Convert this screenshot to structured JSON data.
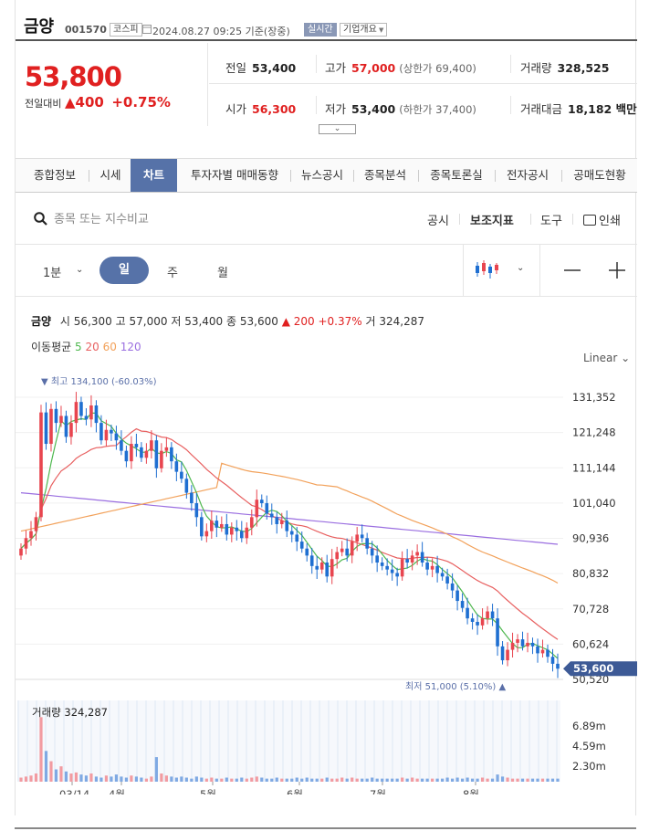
{
  "header": {
    "name": "금양",
    "code": "001570",
    "market": "코스피",
    "datetime": "2024.08.27 09:25 기준(장중)",
    "live": "실시간",
    "overview": "기업개요"
  },
  "price": {
    "current": "53,800",
    "change_label": "전일대비",
    "change_value": "▲400",
    "change_pct": "+0.75%"
  },
  "stats": {
    "prev_label": "전일",
    "prev": "53,400",
    "high_label": "고가",
    "high": "57,000",
    "upper_limit": "(상한가 69,400)",
    "volume_label": "거래량",
    "volume": "328,525",
    "open_label": "시가",
    "open": "56,300",
    "low_label": "저가",
    "low": "53,400",
    "lower_limit": "(하한가 37,400)",
    "amount_label": "거래대금",
    "amount": "18,182 백만"
  },
  "tabs": [
    "종합정보",
    "시세",
    "차트",
    "투자자별 매매동향",
    "뉴스공시",
    "종목분석",
    "종목토론실",
    "전자공시",
    "공매도현황"
  ],
  "search": {
    "placeholder": "종목 또는 지수비교"
  },
  "tools": {
    "disclosure": "공시",
    "indicator": "보조지표",
    "tool": "도구",
    "print": "인쇄"
  },
  "periods": {
    "minute": "1분",
    "day": "일",
    "week": "주",
    "month": "월"
  },
  "ohlc": {
    "name": "금양",
    "open_label": "시",
    "open": "56,300",
    "high_label": "고",
    "high": "57,000",
    "low_label": "저",
    "low": "53,400",
    "close_label": "종",
    "close": "53,600",
    "change": "▲ 200 +0.37%",
    "vol_label": "거",
    "vol": "324,287"
  },
  "ma_legend": {
    "label": "이동평균",
    "p5": "5",
    "p20": "20",
    "p60": "60",
    "p120": "120"
  },
  "scale_mode": "Linear",
  "colors": {
    "up": "#e8454f",
    "down": "#1f6fd1",
    "ma5": "#4fb84f",
    "ma20": "#e86060",
    "ma60": "#f2a15a",
    "ma120": "#9a6ee0",
    "accent": "#5672a8"
  },
  "chart_data": {
    "type": "candlestick",
    "y_ticks": [
      "131,352",
      "121,248",
      "111,144",
      "101,040",
      "90,936",
      "80,832",
      "70,728",
      "60,624",
      "50,520"
    ],
    "ylim": [
      50520,
      131352
    ],
    "x_ticks": [
      "03/14",
      "4월",
      "5월",
      "6월",
      "7월",
      "8월"
    ],
    "current_price_label": "53,600",
    "high_note": "▼ 최고 134,100 (-60.03%)",
    "low_note": "최저 51,000 (5.10%) ▲",
    "volume_label": "거래량 324,287",
    "volume_ticks": [
      "6.89m",
      "4.59m",
      "2.30m"
    ],
    "closes": [
      88000,
      91000,
      93000,
      97000,
      127000,
      118000,
      128000,
      124000,
      126000,
      120000,
      124000,
      130000,
      126000,
      125000,
      129000,
      124000,
      119000,
      122000,
      121000,
      119000,
      116000,
      113000,
      118000,
      117000,
      114000,
      116000,
      119000,
      111000,
      116000,
      117000,
      113000,
      110000,
      108000,
      104000,
      101000,
      97000,
      91500,
      93000,
      96000,
      94000,
      95000,
      92000,
      94000,
      93000,
      91000,
      94000,
      97000,
      102000,
      101000,
      98000,
      97000,
      95000,
      96000,
      93000,
      92000,
      90000,
      88000,
      86000,
      83000,
      82000,
      84000,
      80000,
      85000,
      87000,
      88000,
      86000,
      90000,
      92000,
      91000,
      88000,
      86000,
      84000,
      83000,
      82000,
      81000,
      80000,
      85000,
      84000,
      86000,
      87000,
      84000,
      82000,
      83000,
      81000,
      80000,
      78000,
      76000,
      73000,
      71000,
      68000,
      67000,
      66000,
      68000,
      70000,
      68000,
      60000,
      56000,
      59000,
      61000,
      62000,
      60000,
      61000,
      60000,
      58000,
      59000,
      57000,
      55000,
      53600
    ]
  },
  "volume_data": [
    0.4,
    0.5,
    0.6,
    0.8,
    6.3,
    3.0,
    2.0,
    1.2,
    1.5,
    1.0,
    0.8,
    0.9,
    0.7,
    0.6,
    0.8,
    0.5,
    0.4,
    0.6,
    0.5,
    0.7,
    0.5,
    0.4,
    0.6,
    0.5,
    0.4,
    0.3,
    0.5,
    2.4,
    0.8,
    0.6,
    0.5,
    0.4,
    0.5,
    0.4,
    0.3,
    0.5,
    0.4,
    0.3,
    0.4,
    0.3,
    0.3,
    0.4,
    0.3,
    0.3,
    0.4,
    0.3,
    0.4,
    0.5,
    0.4,
    0.3,
    0.3,
    0.4,
    0.3,
    0.3,
    0.3,
    0.4,
    0.3,
    0.4,
    0.3,
    0.3,
    0.3,
    0.4,
    0.3,
    0.3,
    0.4,
    0.3,
    0.4,
    0.3,
    0.3,
    0.3,
    0.4,
    0.3,
    0.3,
    0.3,
    0.3,
    0.3,
    0.4,
    0.3,
    0.4,
    0.3,
    0.3,
    0.3,
    0.3,
    0.3,
    0.3,
    0.4,
    0.3,
    0.4,
    0.3,
    0.4,
    0.3,
    0.3,
    0.4,
    0.3,
    0.3,
    0.7,
    0.5,
    0.4,
    0.3,
    0.3,
    0.3,
    0.3,
    0.3,
    0.3,
    0.3,
    0.3,
    0.3,
    0.3
  ]
}
